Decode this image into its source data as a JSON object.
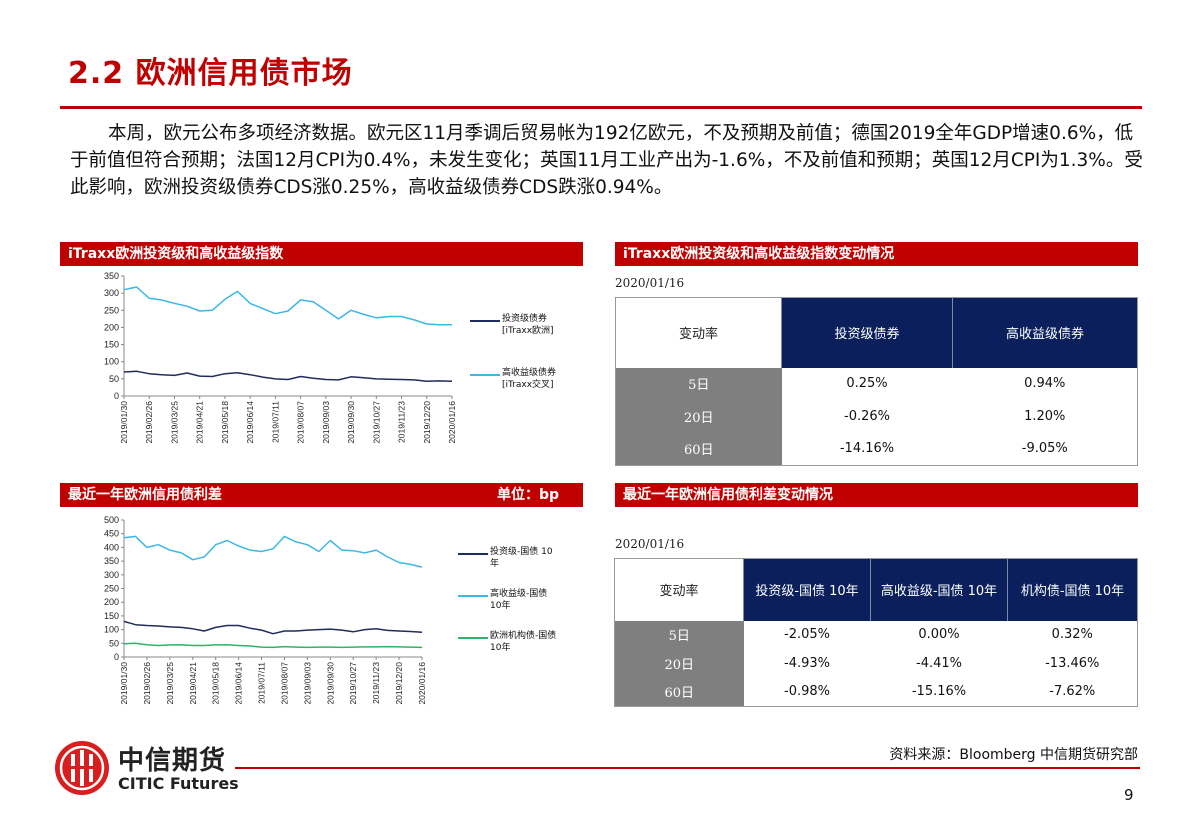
{
  "title": "2.2 欧洲信用债市场",
  "paragraph": "本周，欧元公布多项经济数据。欧元区11月季调后贸易帐为192亿欧元，不及预期及前值；德国2019全年GDP增速0.6%，低于前值但符合预期；法国12月CPI为0.4%，未发生变化；英国11月工业产出为-1.6%，不及前值和预期；英国12月CPI为1.3%。受此影响，欧洲投资级债券CDS涨0.25%，高收益级债券CDS跌涨0.94%。",
  "panels": {
    "chart1_title": "iTraxx欧洲投资级和高收益级指数",
    "table1_title": "iTraxx欧洲投资级和高收益级指数变动情况",
    "chart2_title": "最近一年欧洲信用债利差",
    "chart2_unit": "单位：bp",
    "table2_title": "最近一年欧洲信用债利差变动情况"
  },
  "table1": {
    "date": "2020/01/16",
    "corner": "变动率",
    "headers": [
      "投资级债券",
      "高收益级债券"
    ],
    "rows": [
      {
        "label": "5日",
        "values": [
          "0.25%",
          "0.94%"
        ]
      },
      {
        "label": "20日",
        "values": [
          "-0.26%",
          "1.20%"
        ]
      },
      {
        "label": "60日",
        "values": [
          "-14.16%",
          "-9.05%"
        ]
      }
    ]
  },
  "table2": {
    "date": "2020/01/16",
    "corner": "变动率",
    "headers": [
      "投资级-国债 10年",
      "高收益级-国债 10年",
      "机构债-国债 10年"
    ],
    "rows": [
      {
        "label": "5日",
        "values": [
          "-2.05%",
          "0.00%",
          "0.32%"
        ]
      },
      {
        "label": "20日",
        "values": [
          "-4.93%",
          "-4.41%",
          "-13.46%"
        ]
      },
      {
        "label": "60日",
        "values": [
          "-0.98%",
          "-15.16%",
          "-7.62%"
        ]
      }
    ]
  },
  "chart_data": [
    {
      "type": "line",
      "title": "iTraxx欧洲投资级和高收益级指数",
      "x_ticks": [
        "2019/01/30",
        "2019/02/26",
        "2019/03/25",
        "2019/04/21",
        "2019/05/18",
        "2019/06/14",
        "2019/07/11",
        "2019/08/07",
        "2019/09/03",
        "2019/09/30",
        "2019/10/27",
        "2019/11/23",
        "2019/12/20",
        "2020/01/16"
      ],
      "ylim": [
        0,
        350
      ],
      "y_ticks": [
        0,
        50,
        100,
        150,
        200,
        250,
        300,
        350
      ],
      "grid": false,
      "legend": "right",
      "series": [
        {
          "name": "投资级债券 [iTraxx欧洲]",
          "color": "#1f2d5c",
          "values": [
            70,
            72,
            65,
            62,
            60,
            67,
            58,
            57,
            65,
            68,
            62,
            55,
            50,
            48,
            57,
            52,
            48,
            47,
            56,
            53,
            50,
            49,
            48,
            47,
            43,
            44,
            43
          ]
        },
        {
          "name": "高收益级债券 [iTraxx交叉]",
          "color": "#3cb8e6",
          "values": [
            310,
            318,
            285,
            280,
            270,
            262,
            248,
            250,
            282,
            305,
            270,
            255,
            240,
            248,
            280,
            275,
            250,
            225,
            250,
            238,
            228,
            232,
            232,
            222,
            210,
            208,
            208
          ]
        }
      ]
    },
    {
      "type": "line",
      "title": "最近一年欧洲信用债利差",
      "unit": "单位：bp",
      "x_ticks": [
        "2019/01/30",
        "2019/02/26",
        "2019/03/25",
        "2019/04/21",
        "2019/05/18",
        "2019/06/14",
        "2019/07/11",
        "2019/08/07",
        "2019/09/03",
        "2019/09/30",
        "2019/10/27",
        "2019/11/23",
        "2019/12/20",
        "2020/01/16"
      ],
      "ylim": [
        0,
        500
      ],
      "y_ticks": [
        0,
        50,
        100,
        150,
        200,
        250,
        300,
        350,
        400,
        450,
        500
      ],
      "grid": false,
      "legend": "right",
      "series": [
        {
          "name": "投资级-国债 10年",
          "color": "#1f2d5c",
          "values": [
            130,
            118,
            115,
            113,
            110,
            108,
            103,
            95,
            108,
            115,
            115,
            105,
            98,
            85,
            95,
            95,
            98,
            100,
            102,
            98,
            92,
            100,
            103,
            97,
            95,
            93,
            90
          ]
        },
        {
          "name": "高收益级-国债 10年",
          "color": "#3cb8e6",
          "values": [
            435,
            440,
            400,
            410,
            390,
            380,
            355,
            365,
            410,
            425,
            405,
            390,
            385,
            395,
            440,
            420,
            410,
            385,
            425,
            390,
            388,
            380,
            390,
            365,
            345,
            338,
            328
          ]
        },
        {
          "name": "欧洲机构债-国债 10年",
          "color": "#2fb36a",
          "values": [
            48,
            50,
            45,
            42,
            44,
            45,
            42,
            42,
            44,
            45,
            42,
            40,
            36,
            35,
            38,
            36,
            35,
            36,
            36,
            35,
            36,
            37,
            37,
            38,
            37,
            36,
            35
          ]
        }
      ]
    }
  ],
  "legend1": [
    "投资级债券",
    "[iTraxx欧洲]",
    "高收益级债券",
    "[iTraxx交叉]"
  ],
  "legend2": [
    "投资级-国债 10",
    "年",
    "高收益级-国债",
    "10年",
    "欧洲机构债-国债",
    "10年"
  ],
  "footer": {
    "logo_cn": "中信期货",
    "logo_en": "CITIC Futures",
    "source": "资料来源：Bloomberg  中信期货研究部",
    "page": "9"
  }
}
